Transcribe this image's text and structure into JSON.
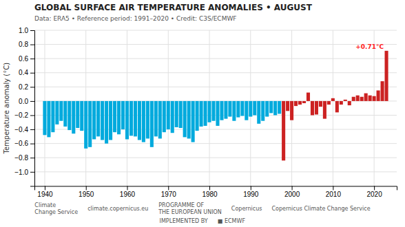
{
  "chart_data": {
    "type": "bar",
    "title": "GLOBAL SURFACE AIR TEMPERATURE ANOMALIES • AUGUST",
    "subtitle": "Data: ERA5 • Reference period: 1991–2020 • Credit: C3S/ECMWF",
    "y_label": "Temperature anomaly (°C)",
    "x": [
      1940,
      1941,
      1942,
      1943,
      1944,
      1945,
      1946,
      1947,
      1948,
      1949,
      1950,
      1951,
      1952,
      1953,
      1954,
      1955,
      1956,
      1957,
      1958,
      1959,
      1960,
      1961,
      1962,
      1963,
      1964,
      1965,
      1966,
      1967,
      1968,
      1969,
      1970,
      1971,
      1972,
      1973,
      1974,
      1975,
      1976,
      1977,
      1978,
      1979,
      1980,
      1981,
      1982,
      1983,
      1984,
      1985,
      1986,
      1987,
      1988,
      1989,
      1990,
      1991,
      1992,
      1993,
      1994,
      1995,
      1996,
      1997,
      1998,
      1999,
      2000,
      2001,
      2002,
      2003,
      2004,
      2005,
      2006,
      2007,
      2008,
      2009,
      2010,
      2011,
      2012,
      2013,
      2014,
      2015,
      2016,
      2017,
      2018,
      2019,
      2020,
      2021,
      2022,
      2023
    ],
    "values": [
      -0.48,
      -0.51,
      -0.44,
      -0.33,
      -0.28,
      -0.36,
      -0.41,
      -0.46,
      -0.38,
      -0.42,
      -0.67,
      -0.65,
      -0.54,
      -0.5,
      -0.55,
      -0.6,
      -0.55,
      -0.44,
      -0.47,
      -0.4,
      -0.54,
      -0.49,
      -0.5,
      -0.55,
      -0.58,
      -0.53,
      -0.65,
      -0.5,
      -0.53,
      -0.44,
      -0.4,
      -0.45,
      -0.37,
      -0.38,
      -0.51,
      -0.53,
      -0.58,
      -0.42,
      -0.36,
      -0.35,
      -0.3,
      -0.28,
      -0.35,
      -0.27,
      -0.25,
      -0.22,
      -0.28,
      -0.23,
      -0.21,
      -0.27,
      -0.22,
      -0.2,
      -0.32,
      -0.28,
      -0.22,
      -0.17,
      -0.2,
      -0.18,
      -0.84,
      -0.14,
      -0.27,
      -0.07,
      -0.05,
      -0.03,
      0.12,
      -0.2,
      -0.19,
      -0.08,
      -0.25,
      -0.05,
      0.04,
      -0.16,
      -0.05,
      0.02,
      -0.06,
      0.06,
      0.08,
      0.06,
      0.11,
      0.08,
      0.07,
      0.15,
      0.28,
      0.71
    ],
    "colors": [
      "#00aadd",
      "#00aadd",
      "#00aadd",
      "#00aadd",
      "#00aadd",
      "#00aadd",
      "#00aadd",
      "#00aadd",
      "#00aadd",
      "#00aadd",
      "#00aadd",
      "#00aadd",
      "#00aadd",
      "#00aadd",
      "#00aadd",
      "#00aadd",
      "#00aadd",
      "#00aadd",
      "#00aadd",
      "#00aadd",
      "#00aadd",
      "#00aadd",
      "#00aadd",
      "#00aadd",
      "#00aadd",
      "#00aadd",
      "#00aadd",
      "#00aadd",
      "#00aadd",
      "#00aadd",
      "#00aadd",
      "#00aadd",
      "#00aadd",
      "#00aadd",
      "#00aadd",
      "#00aadd",
      "#00aadd",
      "#00aadd",
      "#00aadd",
      "#00aadd",
      "#00aadd",
      "#00aadd",
      "#00aadd",
      "#00aadd",
      "#00aadd",
      "#00aadd",
      "#00aadd",
      "#00aadd",
      "#00aadd",
      "#00aadd",
      "#00aadd",
      "#00aadd",
      "#00aadd",
      "#00aadd",
      "#00aadd",
      "#00aadd",
      "#00aadd",
      "#00aadd",
      "#cc2222",
      "#cc2222",
      "#cc2222",
      "#cc2222",
      "#cc2222",
      "#cc2222",
      "#cc2222",
      "#cc2222",
      "#cc2222",
      "#cc2222",
      "#cc2222",
      "#cc2222",
      "#cc2222",
      "#cc2222",
      "#cc2222",
      "#cc2222",
      "#cc2222",
      "#cc2222",
      "#cc2222",
      "#cc2222",
      "#cc2222",
      "#cc2222",
      "#cc2222",
      "#cc2222",
      "#cc2222",
      "#cc2222"
    ],
    "xlim": [
      1937.5,
      2025.5
    ],
    "xticks": [
      1940,
      1950,
      1960,
      1970,
      1980,
      1990,
      2000,
      2010,
      2020
    ],
    "ylim": [
      -1.2,
      1.0
    ],
    "yticks": [
      {
        "value": -1.0,
        "label": "−1.0"
      },
      {
        "value": -0.8,
        "label": "−0.8"
      },
      {
        "value": -0.6,
        "label": "−0.6"
      },
      {
        "value": -0.4,
        "label": "−0.4"
      },
      {
        "value": -0.2,
        "label": "−0.2"
      },
      {
        "value": 0.0,
        "label": "0.0"
      },
      0.2,
      0.4,
      0.6,
      0.8,
      {
        "value": 1.0,
        "label": "1.0"
      }
    ],
    "grid": true,
    "annotations": [
      {
        "text": "+0.71°C",
        "x": 2023,
        "y": 0.71,
        "color": "#ff2222"
      },
      {
        "text": "Climate\nChange Service"
      },
      {
        "text": "climate.copernicus.eu"
      },
      {
        "text": "PROGRAMME OF\nTHE EUROPEAN UNION"
      },
      {
        "text": "Copernicus"
      },
      {
        "text": "Copernicus Climate Change Service"
      },
      {
        "text": "IMPLEMENTED BY"
      },
      {
        "text": "■ ECMWF"
      }
    ]
  }
}
